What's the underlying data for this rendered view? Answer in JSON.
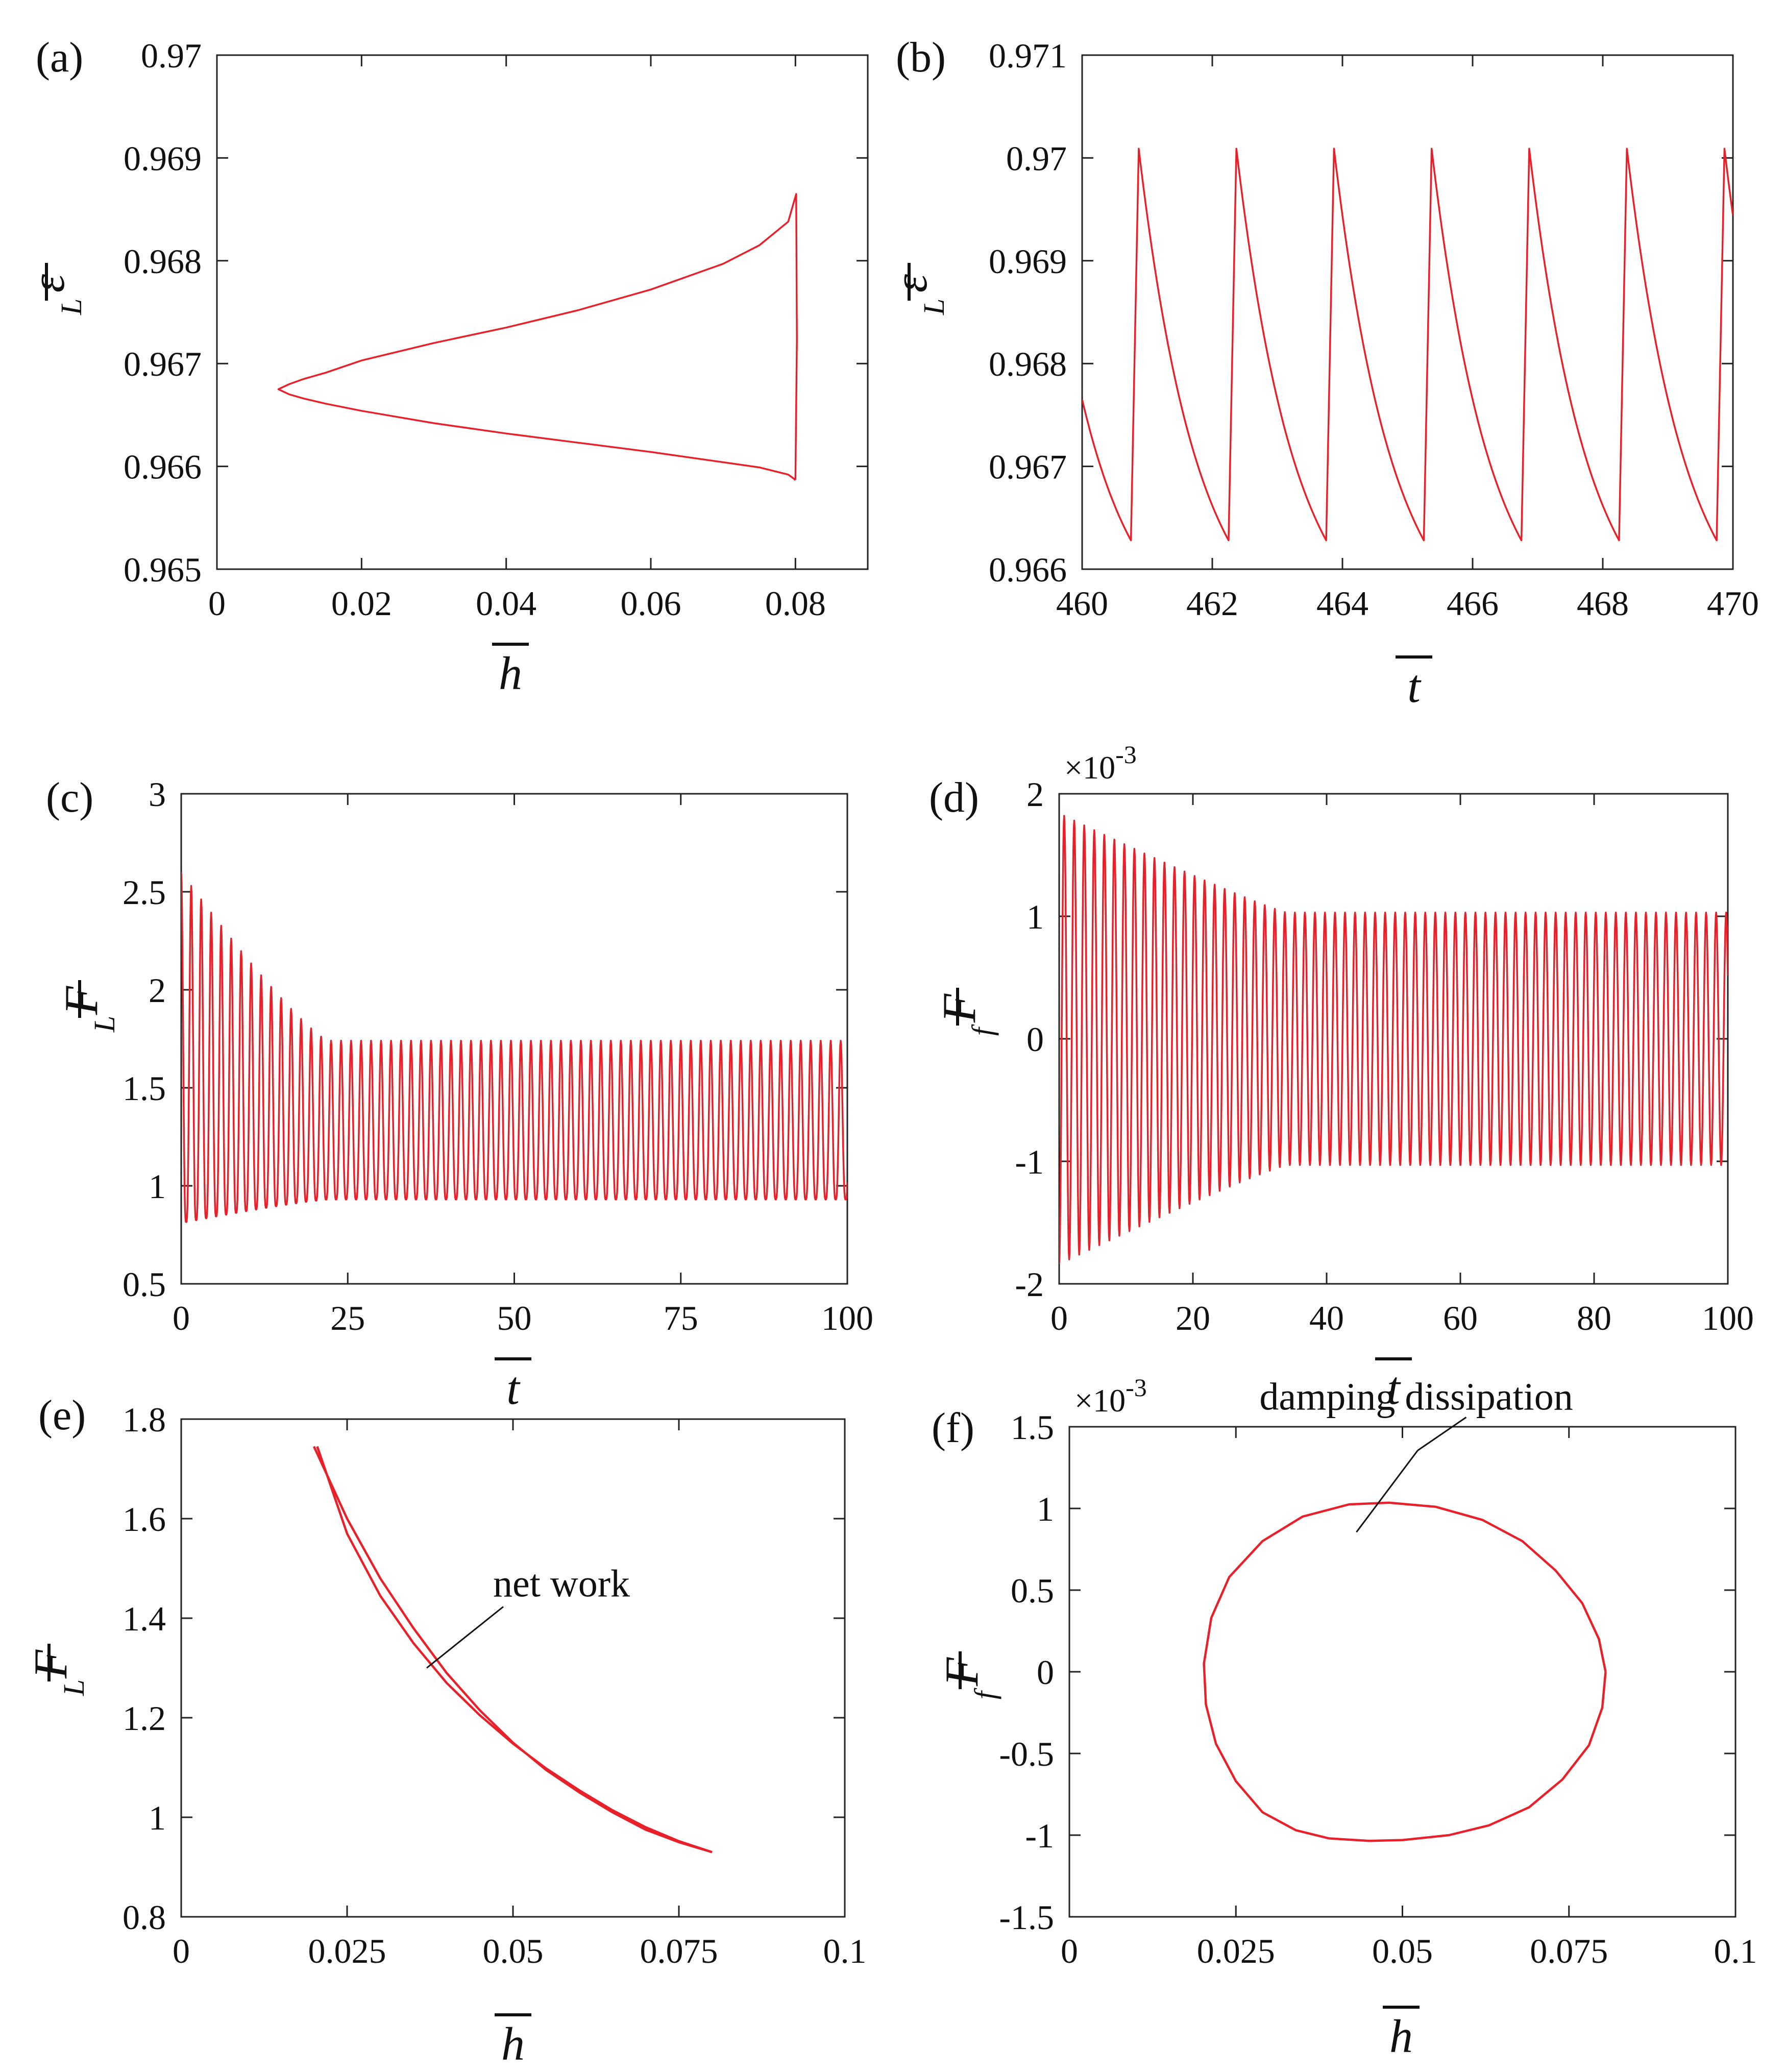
{
  "figure": {
    "panels": [
      "(a)",
      "(b)",
      "(c)",
      "(d)",
      "(e)",
      "(f)"
    ]
  },
  "chart_data": [
    {
      "id": "a",
      "panel_label": "(a)",
      "type": "line",
      "xlabel": "h",
      "ylabel": "ε",
      "ylabel_sub": "L",
      "xlim": [
        0,
        0.09
      ],
      "ylim": [
        0.965,
        0.97
      ],
      "xticks": [
        0,
        0.02,
        0.04,
        0.06,
        0.08
      ],
      "xtick_labels": [
        "0",
        "0.02",
        "0.04",
        "0.06",
        "0.08"
      ],
      "yticks": [
        0.965,
        0.966,
        0.967,
        0.968,
        0.969,
        0.97
      ],
      "ytick_labels": [
        "0.965",
        "0.966",
        "0.967",
        "0.968",
        "0.969",
        "0.97"
      ],
      "series": [
        {
          "name": "loop",
          "color": "#e8202a",
          "x": [
            0.08,
            0.0799,
            0.0798,
            0.079,
            0.075,
            0.07,
            0.06,
            0.05,
            0.04,
            0.03,
            0.02,
            0.015,
            0.012,
            0.01,
            0.0085,
            0.01,
            0.012,
            0.015,
            0.02,
            0.03,
            0.04,
            0.05,
            0.06,
            0.07,
            0.075,
            0.079,
            0.0801,
            0.0802,
            0.08
          ],
          "y": [
            0.96587,
            0.96587,
            0.96588,
            0.96592,
            0.96599,
            0.96604,
            0.96614,
            0.96623,
            0.96632,
            0.96642,
            0.96654,
            0.96661,
            0.96666,
            0.9667,
            0.96675,
            0.9668,
            0.96685,
            0.96691,
            0.96703,
            0.9672,
            0.96735,
            0.96752,
            0.96772,
            0.96797,
            0.96815,
            0.96838,
            0.96865,
            0.96723,
            0.96587
          ]
        }
      ]
    },
    {
      "id": "b",
      "panel_label": "(b)",
      "type": "line",
      "xlabel": "t",
      "ylabel": "ε",
      "ylabel_sub": "L",
      "xlim": [
        460,
        470
      ],
      "ylim": [
        0.966,
        0.971
      ],
      "xticks": [
        460,
        462,
        464,
        466,
        468,
        470
      ],
      "xtick_labels": [
        "460",
        "462",
        "464",
        "466",
        "468",
        "470"
      ],
      "yticks": [
        0.966,
        0.967,
        0.968,
        0.969,
        0.97,
        0.971
      ],
      "ytick_labels": [
        "0.966",
        "0.967",
        "0.968",
        "0.969",
        "0.97",
        "0.971"
      ],
      "sawtooth": {
        "period": 1.5,
        "first_min_t": 460.75,
        "rise_duration": 0.12,
        "min": 0.96628,
        "max": 0.97009,
        "decay_rate": 1.1,
        "value_at_start": 0.96785
      },
      "series": [
        {
          "name": "epsilon_L",
          "color": "#e8202a"
        }
      ]
    },
    {
      "id": "c",
      "panel_label": "(c)",
      "type": "line",
      "xlabel": "t",
      "ylabel": "F",
      "ylabel_sub": "L",
      "xlim": [
        0,
        100
      ],
      "ylim": [
        0.5,
        3
      ],
      "xticks": [
        0,
        25,
        50,
        75,
        100
      ],
      "xtick_labels": [
        "0",
        "25",
        "50",
        "75",
        "100"
      ],
      "yticks": [
        0.5,
        1,
        1.5,
        2,
        2.5,
        3
      ],
      "ytick_labels": [
        "0.5",
        "1",
        "1.5",
        "2",
        "2.5",
        "3"
      ],
      "oscillation": {
        "period": 1.5,
        "steady_max": 1.74,
        "steady_min": 0.93,
        "initial_max": 2.6,
        "initial_min": 0.81,
        "settle_time": 22
      },
      "series": [
        {
          "name": "F_L",
          "color": "#e8202a"
        }
      ]
    },
    {
      "id": "d",
      "panel_label": "(d)",
      "type": "line",
      "xlabel": "t",
      "ylabel": "F",
      "ylabel_sub": "f",
      "multiplier": "×10",
      "multiplier_exp": "-3",
      "xlim": [
        0,
        100
      ],
      "ylim": [
        -2,
        2
      ],
      "xticks": [
        0,
        20,
        40,
        60,
        80,
        100
      ],
      "xtick_labels": [
        "0",
        "20",
        "40",
        "60",
        "80",
        "100"
      ],
      "yticks": [
        -2,
        -1,
        0,
        1,
        2
      ],
      "ytick_labels": [
        "-2",
        "-1",
        "0",
        "1",
        "2"
      ],
      "oscillation": {
        "period": 1.5,
        "steady_amp": 1.03,
        "initial_amp": 1.84,
        "settle_time": 34
      },
      "series": [
        {
          "name": "F_f",
          "color": "#e8202a"
        }
      ]
    },
    {
      "id": "e",
      "panel_label": "(e)",
      "type": "line",
      "xlabel": "h",
      "ylabel": "F",
      "ylabel_sub": "L",
      "xlim": [
        0,
        0.1
      ],
      "ylim": [
        0.8,
        1.8
      ],
      "xticks": [
        0,
        0.025,
        0.05,
        0.075,
        0.1
      ],
      "xtick_labels": [
        "0",
        "0.025",
        "0.05",
        "0.075",
        "0.1"
      ],
      "yticks": [
        0.8,
        1,
        1.2,
        1.4,
        1.6,
        1.8
      ],
      "ytick_labels": [
        "0.8",
        "1",
        "1.2",
        "1.4",
        "1.6",
        "1.8"
      ],
      "annotation": {
        "text": "net work",
        "at": [
          0.037,
          1.3
        ]
      },
      "series": [
        {
          "name": "upper",
          "color": "#e8202a",
          "x": [
            0.02,
            0.025,
            0.03,
            0.035,
            0.04,
            0.045,
            0.05,
            0.055,
            0.06,
            0.065,
            0.07,
            0.075,
            0.08
          ],
          "y": [
            1.745,
            1.6,
            1.48,
            1.38,
            1.29,
            1.215,
            1.15,
            1.095,
            1.05,
            1.01,
            0.975,
            0.95,
            0.93
          ]
        },
        {
          "name": "lower",
          "color": "#e8202a",
          "x": [
            0.08,
            0.075,
            0.07,
            0.065,
            0.06,
            0.055,
            0.05,
            0.045,
            0.04,
            0.035,
            0.03,
            0.025,
            0.0205
          ],
          "y": [
            0.93,
            0.952,
            0.98,
            1.014,
            1.054,
            1.098,
            1.148,
            1.205,
            1.27,
            1.35,
            1.445,
            1.57,
            1.745
          ]
        }
      ]
    },
    {
      "id": "f",
      "panel_label": "(f)",
      "type": "line",
      "xlabel": "h",
      "ylabel": "F",
      "ylabel_sub": "f",
      "multiplier": "×10",
      "multiplier_exp": "-3",
      "xlim": [
        0,
        0.1
      ],
      "ylim": [
        -1.5,
        1.5
      ],
      "xticks": [
        0,
        0.025,
        0.05,
        0.075,
        0.1
      ],
      "xtick_labels": [
        "0",
        "0.025",
        "0.05",
        "0.075",
        "0.1"
      ],
      "yticks": [
        -1.5,
        -1,
        -0.5,
        0,
        0.5,
        1,
        1.5
      ],
      "ytick_labels": [
        "-1.5",
        "-1",
        "-0.5",
        "0",
        "0.5",
        "1",
        "1.5"
      ],
      "annotation": {
        "text": "damping dissipation",
        "at": [
          0.0385,
          0.73
        ]
      },
      "series": [
        {
          "name": "loop",
          "color": "#e8202a",
          "x": [
            0.0805,
            0.08,
            0.078,
            0.074,
            0.069,
            0.063,
            0.057,
            0.05,
            0.045,
            0.039,
            0.034,
            0.029,
            0.025,
            0.022,
            0.0205,
            0.0202,
            0.0213,
            0.024,
            0.029,
            0.035,
            0.042,
            0.048,
            0.055,
            0.062,
            0.068,
            0.073,
            0.077,
            0.0795,
            0.0805
          ],
          "y": [
            0,
            -0.22,
            -0.45,
            -0.66,
            -0.83,
            -0.94,
            -1.0,
            -1.03,
            -1.035,
            -1.02,
            -0.97,
            -0.86,
            -0.67,
            -0.44,
            -0.2,
            0.05,
            0.33,
            0.58,
            0.8,
            0.95,
            1.025,
            1.035,
            1.01,
            0.93,
            0.8,
            0.62,
            0.42,
            0.2,
            0
          ]
        }
      ]
    }
  ]
}
